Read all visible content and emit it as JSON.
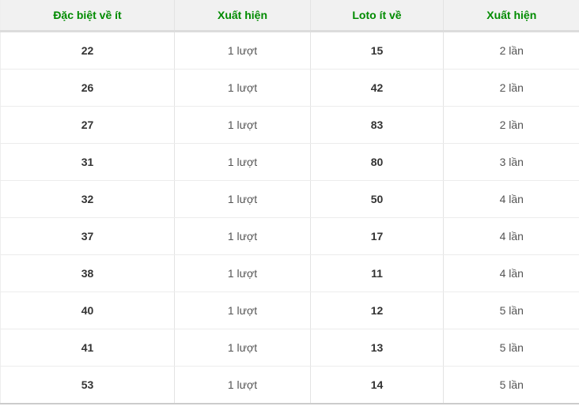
{
  "table": {
    "columns": [
      "Đặc biệt về ít",
      "Xuất hiện",
      "Loto ít về",
      "Xuất hiện"
    ],
    "rows": [
      [
        "22",
        "1 lượt",
        "15",
        "2 lần"
      ],
      [
        "26",
        "1 lượt",
        "42",
        "2 lần"
      ],
      [
        "27",
        "1 lượt",
        "83",
        "2 lần"
      ],
      [
        "31",
        "1 lượt",
        "80",
        "3 lần"
      ],
      [
        "32",
        "1 lượt",
        "50",
        "4 lần"
      ],
      [
        "37",
        "1 lượt",
        "17",
        "4 lần"
      ],
      [
        "38",
        "1 lượt",
        "11",
        "4 lần"
      ],
      [
        "40",
        "1 lượt",
        "12",
        "5 lần"
      ],
      [
        "41",
        "1 lượt",
        "13",
        "5 lần"
      ],
      [
        "53",
        "1 lượt",
        "14",
        "5 lần"
      ]
    ],
    "colors": {
      "header_text": "#008b00",
      "header_bg": "#f1f1f1",
      "number_text": "#333333",
      "count_text": "#555555"
    }
  }
}
